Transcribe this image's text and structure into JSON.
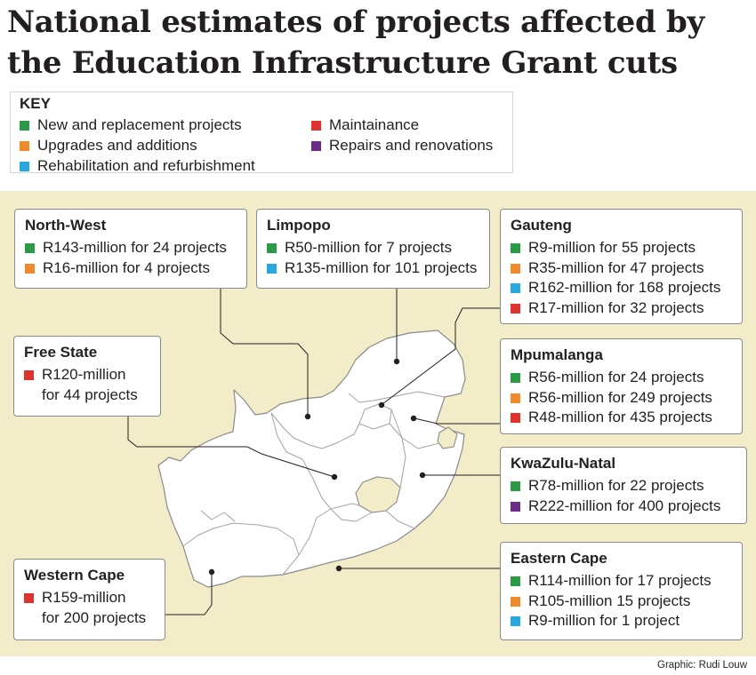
{
  "title": "National estimates of projects affected by the Education Infrastructure Grant cuts",
  "key": {
    "title": "KEY",
    "items": [
      {
        "label": "New and replacement projects",
        "color": "#2d9a47"
      },
      {
        "label": "Upgrades and additions",
        "color": "#ef8a2d"
      },
      {
        "label": "Rehabilitation and refurbishment",
        "color": "#29a8df"
      },
      {
        "label": "Maintainance",
        "color": "#e0322d"
      },
      {
        "label": "Repairs and renovations",
        "color": "#6b2d86"
      }
    ]
  },
  "provinces": [
    {
      "name": "North-West",
      "rows": [
        {
          "cat": "new",
          "text": "R143-million for 24 projects"
        },
        {
          "cat": "upgrade",
          "text": "R16-million for 4 projects"
        }
      ]
    },
    {
      "name": "Limpopo",
      "rows": [
        {
          "cat": "new",
          "text": "R50-million for 7 projects"
        },
        {
          "cat": "rehab",
          "text": "R135-million for 101 projects"
        }
      ]
    },
    {
      "name": "Gauteng",
      "rows": [
        {
          "cat": "new",
          "text": "R9-million for 55 projects"
        },
        {
          "cat": "upgrade",
          "text": "R35-million for 47 projects"
        },
        {
          "cat": "rehab",
          "text": "R162-million for 168 projects"
        },
        {
          "cat": "maint",
          "text": "R17-million for 32 projects"
        }
      ]
    },
    {
      "name": "Free State",
      "rows": [
        {
          "cat": "maint",
          "text": "R120-million\nfor 44 projects"
        }
      ]
    },
    {
      "name": "Mpumalanga",
      "rows": [
        {
          "cat": "new",
          "text": "R56-million for 24 projects"
        },
        {
          "cat": "upgrade",
          "text": "R56-million for 249 projects"
        },
        {
          "cat": "maint",
          "text": "R48-million for 435 projects"
        }
      ]
    },
    {
      "name": "KwaZulu-Natal",
      "rows": [
        {
          "cat": "new",
          "text": "R78-million for 22 projects"
        },
        {
          "cat": "repair",
          "text": "R222-million for 400 projects"
        }
      ]
    },
    {
      "name": "Western Cape",
      "rows": [
        {
          "cat": "maint",
          "text": "R159-million\nfor 200 projects"
        }
      ]
    },
    {
      "name": "Eastern Cape",
      "rows": [
        {
          "cat": "new",
          "text": "R114-million for 17 projects"
        },
        {
          "cat": "upgrade",
          "text": "R105-million 15 projects"
        },
        {
          "cat": "rehab",
          "text": "R9-million for 1 project"
        }
      ]
    }
  ],
  "colors": {
    "new": "#2d9a47",
    "upgrade": "#ef8a2d",
    "rehab": "#29a8df",
    "maint": "#e0322d",
    "repair": "#6b2d86",
    "background": "#f3ecc8",
    "land": "#ffffff",
    "border": "#8a8a8a"
  },
  "credit": "Graphic: Rudi Louw"
}
